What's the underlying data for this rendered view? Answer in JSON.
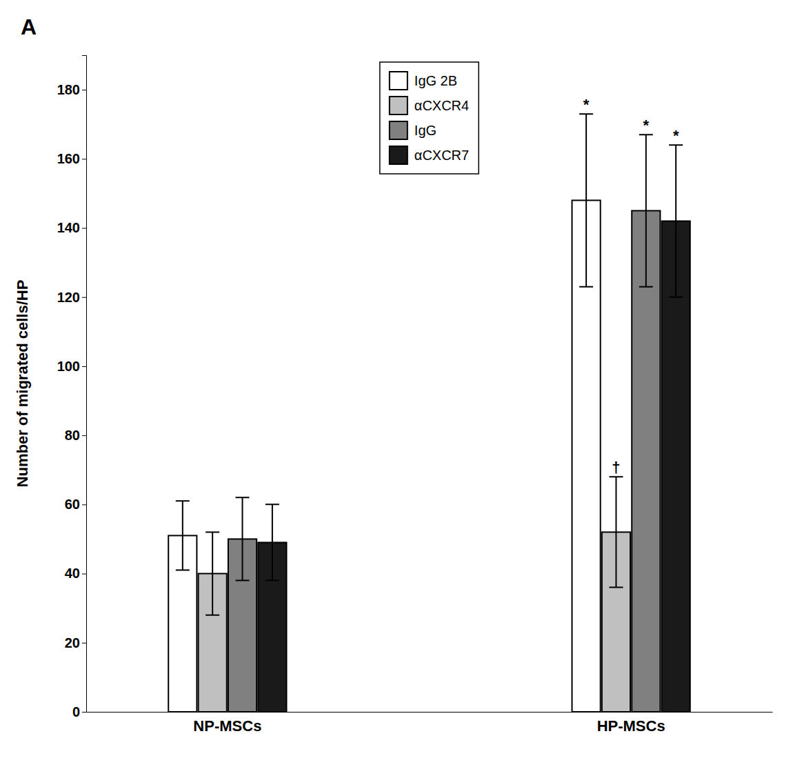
{
  "chart_data": {
    "type": "bar",
    "categories": [
      "NP-MSCs",
      "HP-MSCs"
    ],
    "series": [
      {
        "name": "IgG 2B",
        "color": "#ffffff",
        "values": [
          51,
          148
        ],
        "errors": [
          10,
          25
        ]
      },
      {
        "name": "αCXCR4",
        "color": "#c0c0c0",
        "values": [
          40,
          52
        ],
        "errors": [
          12,
          16
        ]
      },
      {
        "name": "IgG",
        "color": "#808080",
        "values": [
          50,
          145
        ],
        "errors": [
          12,
          22
        ]
      },
      {
        "name": "αCXCR7",
        "color": "#1a1a1a",
        "values": [
          49,
          142
        ],
        "errors": [
          11,
          22
        ]
      }
    ],
    "ylabel": "Number of migrated cells/HP",
    "ylim": [
      0,
      190
    ],
    "yticks": [
      0,
      20,
      40,
      60,
      80,
      100,
      120,
      140,
      160,
      180
    ],
    "annotations": [
      {
        "text": "*",
        "category": "HP-MSCs",
        "series": "IgG 2B"
      },
      {
        "text": "†",
        "category": "HP-MSCs",
        "series": "αCXCR4"
      },
      {
        "text": "*",
        "category": "HP-MSCs",
        "series": "IgG"
      },
      {
        "text": "*",
        "category": "HP-MSCs",
        "series": "αCXCR7"
      },
      {
        "text": "A"
      }
    ],
    "legend": "upper center",
    "grid": false
  }
}
